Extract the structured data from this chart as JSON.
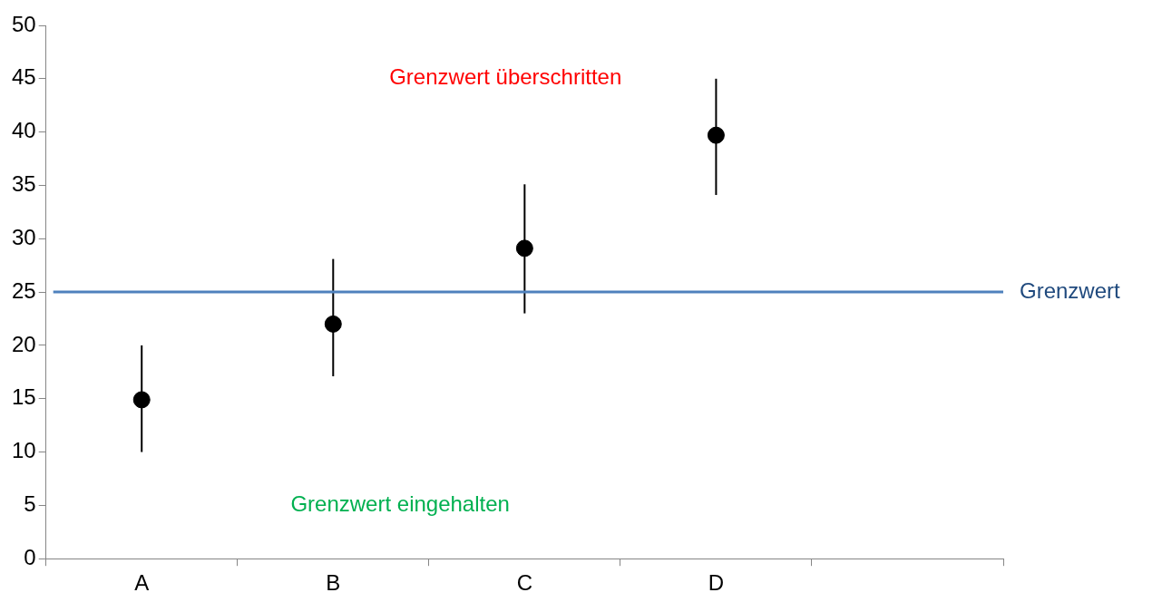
{
  "chart_data": {
    "type": "scatter",
    "categories": [
      "A",
      "B",
      "C",
      "D",
      null
    ],
    "series": [
      {
        "color": "#000000",
        "values": [
          14.9,
          22,
          29.1,
          39.7,
          null
        ],
        "errors": [
          [
            10,
            20
          ],
          [
            17.1,
            28.1
          ],
          [
            23,
            35.1
          ],
          [
            34.1,
            45
          ],
          null
        ]
      }
    ],
    "ylim": [
      0,
      50
    ],
    "yticks": [
      0,
      5,
      10,
      15,
      20,
      25,
      30,
      35,
      40,
      45,
      50
    ],
    "ref_lines": [
      {
        "axis": "y",
        "value": 25,
        "label": "Grenzwert",
        "color": "#4f81bd"
      }
    ],
    "annotations": [
      "Grenzwert überschritten",
      "Grenzwert eingehalten"
    ],
    "marker": "circle",
    "grid": false,
    "legend": false
  }
}
